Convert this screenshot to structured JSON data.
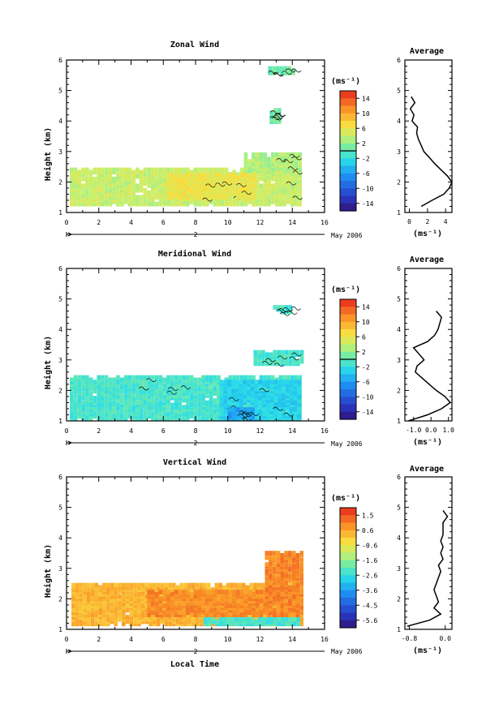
{
  "figure": {
    "xlabel": "Local Time",
    "date_label": "May 2006",
    "day_label": "2",
    "colorbar_unit": "(ms⁻¹)",
    "profile_unit": "(ms⁻¹)"
  },
  "chart_data": [
    {
      "type": "heatmap",
      "title": "Zonal Wind",
      "ylabel": "Height (km)",
      "xlim": [
        0,
        16
      ],
      "ylim": [
        1,
        6
      ],
      "x_ticks": [
        0,
        2,
        4,
        6,
        8,
        10,
        12,
        14,
        16
      ],
      "y_ticks": [
        1,
        2,
        3,
        4,
        5,
        6
      ],
      "colorbar": {
        "ticks": [
          "14",
          "10",
          "6",
          "2",
          "-2",
          "-6",
          "-10",
          "-14"
        ],
        "range": [
          -16,
          16
        ],
        "zero_line": 0
      },
      "blocks": [
        {
          "x0": 0.2,
          "x1": 14.5,
          "y0": 1.2,
          "y1": 2.35,
          "value": 4
        },
        {
          "x0": 6.2,
          "x1": 11.5,
          "y0": 1.4,
          "y1": 2.2,
          "value": 6
        },
        {
          "x0": 12.5,
          "x1": 14.0,
          "y0": 5.5,
          "y1": 5.7,
          "value": 1
        },
        {
          "x0": 12.6,
          "x1": 13.2,
          "y0": 3.9,
          "y1": 4.3,
          "value": 1
        },
        {
          "x0": 11.0,
          "x1": 14.5,
          "y0": 2.3,
          "y1": 2.9,
          "value": 3
        }
      ],
      "profile": {
        "title": "Average",
        "xlim": [
          -0.5,
          4.7
        ],
        "x_ticks": [
          0,
          2,
          4
        ],
        "heights": [
          1.2,
          1.4,
          1.6,
          1.8,
          2.0,
          2.2,
          2.4,
          2.6,
          2.8,
          3.0,
          3.2,
          3.4,
          3.6,
          3.8,
          4.0,
          4.2,
          4.4,
          4.6,
          4.8
        ],
        "values": [
          1.3,
          2.5,
          3.8,
          4.4,
          4.7,
          4.2,
          3.5,
          2.8,
          2.2,
          1.6,
          1.3,
          1.0,
          0.8,
          0.9,
          0.3,
          0.5,
          0.1,
          0.6,
          0.2
        ]
      }
    },
    {
      "type": "heatmap",
      "title": "Meridional Wind",
      "ylabel": "Height (km)",
      "xlim": [
        0,
        16
      ],
      "ylim": [
        1,
        6
      ],
      "x_ticks": [
        0,
        2,
        4,
        6,
        8,
        10,
        12,
        14,
        16
      ],
      "y_ticks": [
        1,
        2,
        3,
        4,
        5,
        6
      ],
      "colorbar": {
        "ticks": [
          "14",
          "10",
          "6",
          "2",
          "-2",
          "-6",
          "-10",
          "-14"
        ],
        "range": [
          -16,
          16
        ],
        "zero_line": 0
      },
      "blocks": [
        {
          "x0": 0.2,
          "x1": 14.5,
          "y0": 1.0,
          "y1": 2.4,
          "value": -1
        },
        {
          "x0": 9.5,
          "x1": 14.5,
          "y0": 1.0,
          "y1": 2.2,
          "value": -3
        },
        {
          "x0": 10.0,
          "x1": 11.5,
          "y0": 1.0,
          "y1": 1.3,
          "value": -6
        },
        {
          "x0": 12.8,
          "x1": 14.0,
          "y0": 4.5,
          "y1": 4.7,
          "value": -1
        },
        {
          "x0": 11.6,
          "x1": 14.5,
          "y0": 2.8,
          "y1": 3.2,
          "value": -1
        }
      ],
      "profile": {
        "title": "Average",
        "xlim": [
          -1.5,
          1.2
        ],
        "x_ticks": [
          -1.0,
          0.0,
          1.0
        ],
        "x_ticklabels": [
          "-1.0",
          "0.0",
          "1.0"
        ],
        "heights": [
          1.0,
          1.2,
          1.4,
          1.6,
          1.8,
          2.0,
          2.2,
          2.4,
          2.6,
          2.8,
          3.0,
          3.2,
          3.4,
          3.6,
          3.8,
          4.0,
          4.2,
          4.4,
          4.6
        ],
        "values": [
          -1.3,
          -0.2,
          0.6,
          1.1,
          0.8,
          0.3,
          -0.1,
          -0.5,
          -0.9,
          -0.8,
          -0.4,
          -0.7,
          -1.0,
          -0.2,
          0.2,
          0.4,
          0.5,
          0.6,
          0.3
        ]
      }
    },
    {
      "type": "heatmap",
      "title": "Vertical Wind",
      "ylabel": "Height (km)",
      "xlim": [
        0,
        16
      ],
      "ylim": [
        1,
        6
      ],
      "x_ticks": [
        0,
        2,
        4,
        6,
        8,
        10,
        12,
        14,
        16
      ],
      "y_ticks": [
        1,
        2,
        3,
        4,
        5,
        6
      ],
      "colorbar": {
        "ticks": [
          "1.5",
          "0.6",
          "-0.6",
          "-1.6",
          "-2.6",
          "-3.6",
          "-4.5",
          "-5.6"
        ],
        "range": [
          -6.0,
          2.0
        ]
      },
      "blocks": [
        {
          "x0": 0.3,
          "x1": 14.5,
          "y0": 1.1,
          "y1": 2.4,
          "value": 0.3
        },
        {
          "x0": 5.0,
          "x1": 12.5,
          "y0": 1.4,
          "y1": 2.2,
          "value": 0.8
        },
        {
          "x0": 12.3,
          "x1": 14.5,
          "y0": 1.4,
          "y1": 3.5,
          "value": 0.9
        },
        {
          "x0": 8.5,
          "x1": 14.5,
          "y0": 1.1,
          "y1": 1.3,
          "value": -2.3
        }
      ],
      "profile": {
        "title": "Average",
        "xlim": [
          -0.9,
          0.15
        ],
        "x_ticks": [
          -0.8,
          0.0
        ],
        "x_ticklabels": [
          "-0.8",
          "0.0"
        ],
        "heights": [
          1.1,
          1.3,
          1.5,
          1.7,
          1.9,
          2.1,
          2.3,
          2.5,
          2.7,
          2.9,
          3.1,
          3.3,
          3.5,
          3.7,
          3.9,
          4.1,
          4.5,
          4.7,
          4.9
        ],
        "values": [
          -0.85,
          -0.35,
          -0.1,
          -0.25,
          -0.15,
          -0.2,
          -0.25,
          -0.2,
          -0.15,
          -0.1,
          -0.15,
          -0.05,
          -0.1,
          -0.05,
          -0.1,
          -0.05,
          -0.05,
          0.05,
          -0.05
        ]
      }
    }
  ]
}
